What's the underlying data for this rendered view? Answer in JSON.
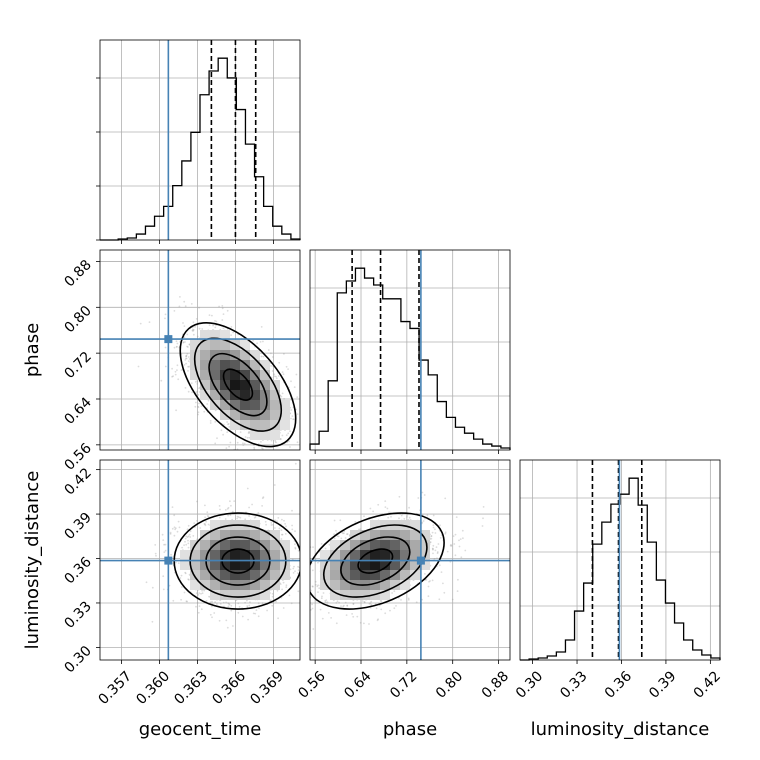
{
  "chart_data": {
    "type": "corner",
    "parameters": [
      "geocent_time",
      "phase",
      "luminosity_distance"
    ],
    "xlabels": {
      "geocent_time": "geocent_time",
      "phase": "phase",
      "luminosity_distance": "luminosity_distance"
    },
    "ylabels": {
      "phase": "phase",
      "luminosity_distance": "luminosity_distance"
    },
    "ranges": {
      "geocent_time": [
        0.3553,
        0.3711
      ],
      "phase": [
        0.551,
        0.9
      ],
      "luminosity_distance": [
        0.2915,
        0.4265
      ]
    },
    "ticks": {
      "geocent_time": [
        0.357,
        0.36,
        0.363,
        0.366,
        0.369
      ],
      "phase": [
        0.56,
        0.64,
        0.72,
        0.8,
        0.88
      ],
      "luminosity_distance": [
        0.3,
        0.33,
        0.36,
        0.39,
        0.42
      ]
    },
    "tick_labels": {
      "geocent_time": [
        "0.357",
        "0.360",
        "0.363",
        "0.366",
        "0.369"
      ],
      "phase": [
        "0.56",
        "0.64",
        "0.72",
        "0.80",
        "0.88"
      ],
      "luminosity_distance": [
        "0.30",
        "0.33",
        "0.36",
        "0.39",
        "0.42"
      ]
    },
    "injection": {
      "geocent_time": 0.3607,
      "phase": 0.7445,
      "luminosity_distance": 0.3586
    },
    "quantiles": {
      "geocent_time": [
        0.3641,
        0.366,
        0.3676
      ],
      "phase": [
        0.6245,
        0.6741,
        0.7412
      ],
      "luminosity_distance": [
        0.3404,
        0.358,
        0.3737
      ]
    },
    "histograms": {
      "geocent_time": {
        "edges_range": [
          0.3553,
          0.3711
        ],
        "counts": [
          0,
          0,
          1,
          2,
          6,
          14,
          24,
          34,
          55,
          80,
          109,
          147,
          171,
          184,
          164,
          132,
          97,
          64,
          34,
          14,
          6,
          1
        ]
      },
      "phase": {
        "edges_range": [
          0.551,
          0.9
        ],
        "counts": [
          6,
          19,
          70,
          159,
          171,
          184,
          174,
          167,
          153,
          153,
          130,
          123,
          91,
          76,
          49,
          33,
          23,
          17,
          11,
          6,
          4,
          2
        ]
      },
      "luminosity_distance": {
        "edges_range": [
          0.2915,
          0.4265
        ],
        "counts": [
          0,
          1,
          2,
          4,
          8,
          20,
          49,
          77,
          116,
          138,
          156,
          166,
          182,
          155,
          118,
          80,
          57,
          37,
          20,
          10,
          5,
          2
        ]
      }
    },
    "density_2d": [
      {
        "x": "geocent_time",
        "y": "phase",
        "mean": [
          0.3662,
          0.665
        ],
        "sd": [
          0.0019,
          0.045
        ],
        "corr": -0.55
      },
      {
        "x": "geocent_time",
        "y": "luminosity_distance",
        "mean": [
          0.3662,
          0.3583
        ],
        "sd": [
          0.0021,
          0.0135
        ],
        "corr": 0.0
      },
      {
        "x": "phase",
        "y": "luminosity_distance",
        "mean": [
          0.665,
          0.3583
        ],
        "sd": [
          0.05,
          0.0135
        ],
        "corr": 0.38
      }
    ],
    "contour_levels_sigma": [
      0.5,
      1.0,
      1.5,
      2.0
    ],
    "colors": {
      "truth": "#4682b4",
      "hist": "#000000",
      "grid": "#b0b0b0"
    },
    "grid": true
  }
}
